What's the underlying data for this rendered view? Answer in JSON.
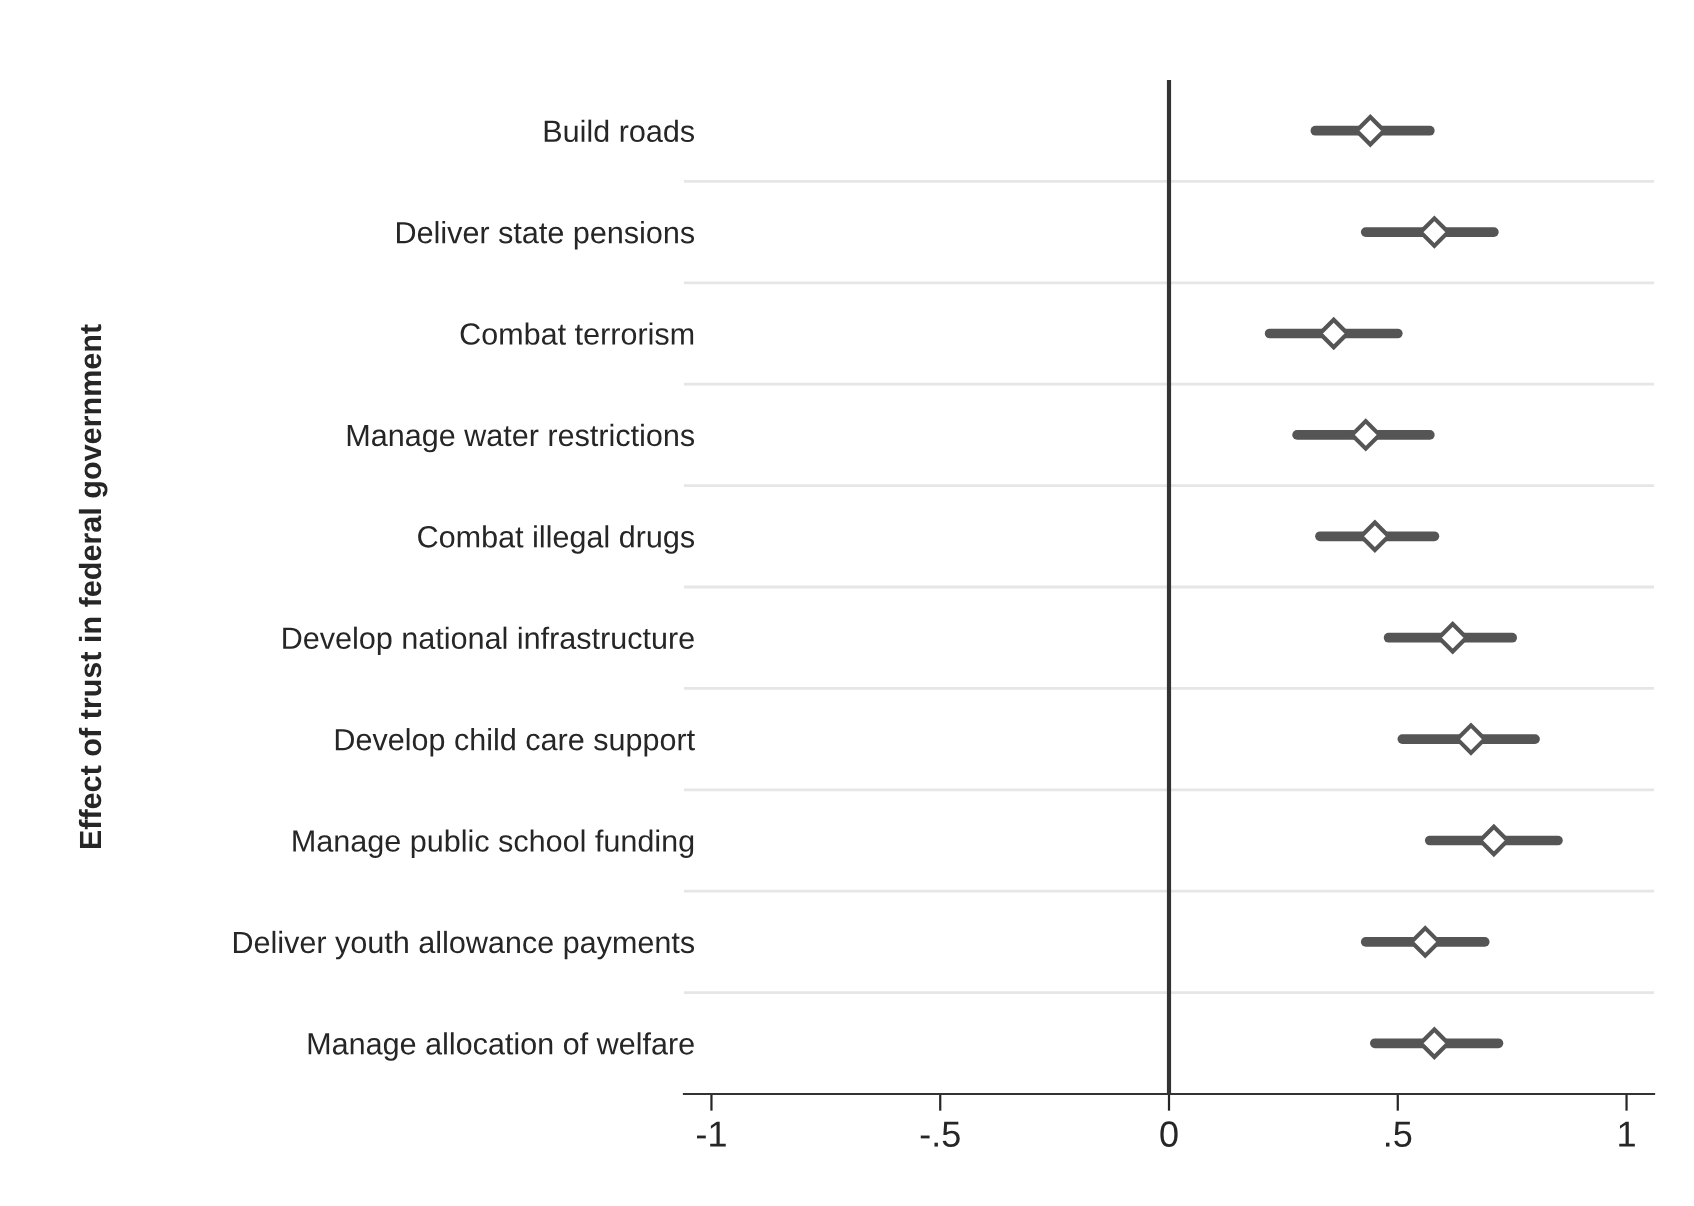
{
  "chart_data": {
    "type": "scatter",
    "orientation": "horizontal",
    "ylabel": "Effect of trust in federal government",
    "categories": [
      "Build roads",
      "Deliver state pensions",
      "Combat terrorism",
      "Manage water restrictions",
      "Combat illegal drugs",
      "Develop national infrastructure",
      "Develop child care support",
      "Manage public school funding",
      "Deliver youth allowance payments",
      "Manage allocation of welfare"
    ],
    "values": [
      0.44,
      0.58,
      0.36,
      0.43,
      0.45,
      0.62,
      0.66,
      0.71,
      0.56,
      0.58
    ],
    "errors": [
      [
        0.32,
        0.57
      ],
      [
        0.43,
        0.71
      ],
      [
        0.22,
        0.5
      ],
      [
        0.28,
        0.57
      ],
      [
        0.33,
        0.58
      ],
      [
        0.48,
        0.75
      ],
      [
        0.51,
        0.8
      ],
      [
        0.57,
        0.85
      ],
      [
        0.43,
        0.69
      ],
      [
        0.45,
        0.72
      ]
    ],
    "color": "#555555",
    "marker": "diamond",
    "xlim": [
      -1.06,
      1.06
    ],
    "xticks": [
      {
        "value": -1,
        "label": "-1"
      },
      {
        "value": -0.5,
        "label": "-.5"
      },
      {
        "value": 0,
        "label": "0"
      },
      {
        "value": 0.5,
        "label": ".5"
      },
      {
        "value": 1,
        "label": "1"
      }
    ],
    "ref_lines": [
      {
        "axis": "x",
        "value": 0,
        "color": "#333333"
      }
    ],
    "grid": "y"
  }
}
